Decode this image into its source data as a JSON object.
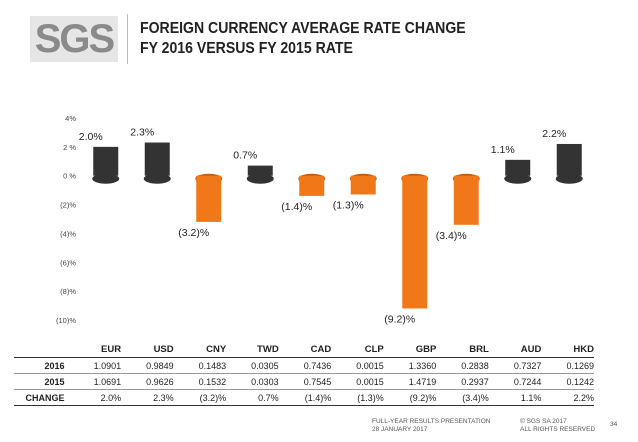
{
  "logo": {
    "text": "SGS"
  },
  "title": {
    "line1": "FOREIGN CURRENCY AVERAGE RATE CHANGE",
    "line2": "FY 2016 VERSUS FY 2015 RATE"
  },
  "colors": {
    "positive": "#333333",
    "negative": "#f07818",
    "text": "#222222"
  },
  "chart_data": {
    "type": "bar",
    "categories": [
      "EUR",
      "USD",
      "CNY",
      "TWD",
      "CAD",
      "CLP",
      "GBP",
      "BRL",
      "AUD",
      "HKD"
    ],
    "values": [
      2.0,
      2.3,
      -3.2,
      0.7,
      -1.4,
      -1.3,
      -9.2,
      -3.4,
      1.1,
      2.2
    ],
    "data_labels": [
      "2.0%",
      "2.3%",
      "(3.2)%",
      "0.7%",
      "(1.4)%",
      "(1.3)%",
      "(9.2)%",
      "(3.4)%",
      "1.1%",
      "2.2%"
    ],
    "yticks": [
      4,
      2,
      0,
      -2,
      -4,
      -6,
      -8,
      -10
    ],
    "ytick_labels": [
      "4%",
      "2 %",
      "0 %",
      "(2)%",
      "(4)%",
      "(6)%",
      "(8)%",
      "(10)%"
    ],
    "ylim": [
      -10,
      4
    ],
    "grid": false,
    "legend": "none"
  },
  "table": {
    "rows": [
      {
        "label": "2016",
        "values": [
          "1.0901",
          "0.9849",
          "0.1483",
          "0.0305",
          "0.7436",
          "0.0015",
          "1.3360",
          "0.2838",
          "0.7327",
          "0.1269"
        ]
      },
      {
        "label": "2015",
        "values": [
          "1.0691",
          "0.9626",
          "0.1532",
          "0.0303",
          "0.7545",
          "0.0015",
          "1.4719",
          "0.2937",
          "0.7244",
          "0.1242"
        ]
      },
      {
        "label": "CHANGE",
        "values": [
          "2.0%",
          "2.3%",
          "(3.2)%",
          "0.7%",
          "(1.4)%",
          "(1.3)%",
          "(9.2)%",
          "(3.4)%",
          "1.1%",
          "2.2%"
        ]
      }
    ]
  },
  "footer": {
    "left_line1": "FULL-YEAR RESULTS PRESENTATION",
    "left_line2": "28 JANUARY 2017",
    "right_line1": "© SGS SA 2017",
    "right_line2": "ALL RIGHTS RESERVED",
    "page": "34"
  }
}
